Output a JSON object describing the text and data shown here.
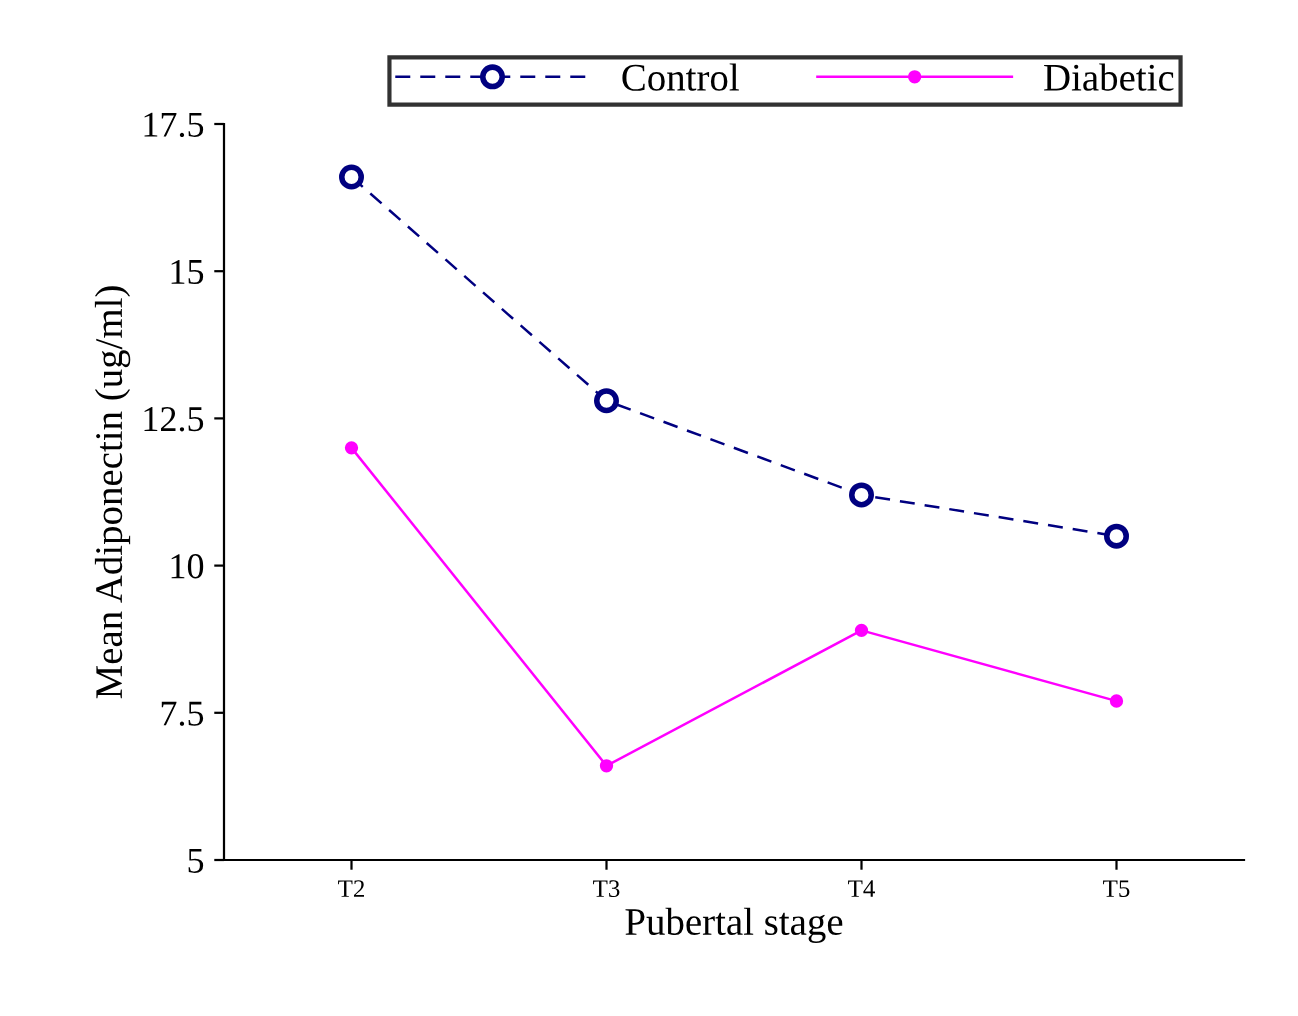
{
  "chart_data": {
    "type": "line",
    "xlabel": "Pubertal stage",
    "ylabel": "Mean Adiponectin (ug/ml)",
    "categories": [
      "T2",
      "T3",
      "T4",
      "T5"
    ],
    "series": [
      {
        "name": "Control",
        "color": "#000080",
        "values": [
          16.6,
          12.8,
          11.2,
          10.5
        ],
        "marker": "circle",
        "line_style": "dashed"
      },
      {
        "name": "Diabetic",
        "color": "#ff00ff",
        "values": [
          12.0,
          6.6,
          8.9,
          7.7
        ],
        "marker": "circle",
        "line_style": "solid"
      }
    ],
    "ylim": [
      5,
      17.5
    ],
    "yticks": [
      5,
      7.5,
      10,
      12.5,
      15,
      17.5
    ],
    "grid": false,
    "legend": "top"
  }
}
